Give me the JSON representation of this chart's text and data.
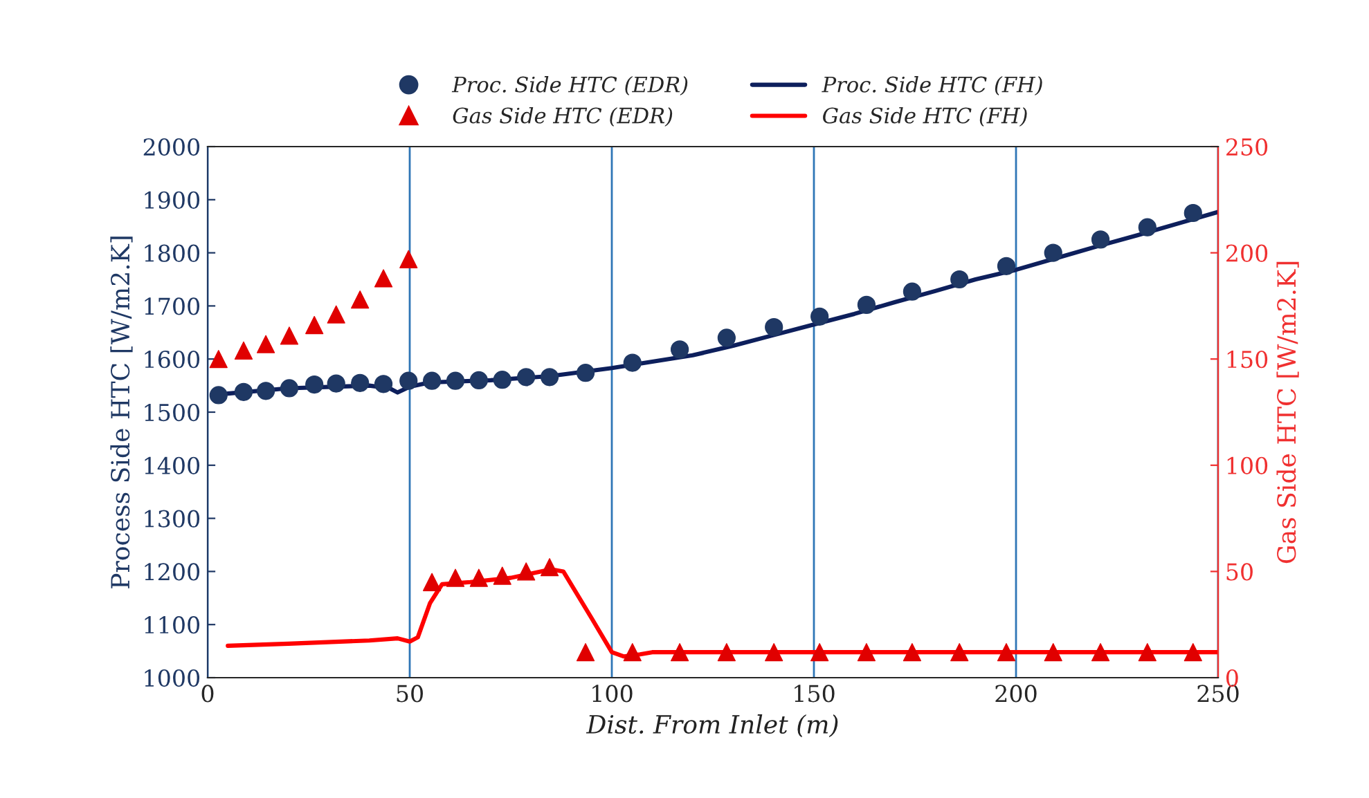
{
  "chart_data": {
    "type": "scatter",
    "xlabel": "Dist. From Inlet (m)",
    "ylabel": "Process Side HTC [W/m2.K]",
    "y2label": "Gas Side HTC [W/m2.K]",
    "xlim": [
      0,
      250
    ],
    "xticks": [
      0,
      50,
      100,
      150,
      200,
      250
    ],
    "ylim": [
      1000,
      2000
    ],
    "yticks": [
      1000,
      1100,
      1200,
      1300,
      1400,
      1500,
      1600,
      1700,
      1800,
      1900,
      2000
    ],
    "y2lim": [
      0,
      250
    ],
    "y2ticks": [
      0,
      50,
      100,
      150,
      200,
      250
    ],
    "grid": "x",
    "legend": "top",
    "series": [
      {
        "name": "Proc. Side HTC (EDR)",
        "marker": "circle",
        "color": "#1f3864",
        "x": [
          2.7,
          8.9,
          14.4,
          20.2,
          26.4,
          31.8,
          37.7,
          43.5,
          49.7,
          55.5,
          61.3,
          67.1,
          72.9,
          78.8,
          84.6,
          93.5,
          105.1,
          116.8,
          128.4,
          140.1,
          151.4,
          163,
          174.3,
          186,
          197.6,
          209.2,
          220.9,
          232.5,
          243.8
        ],
        "values": [
          1532,
          1538,
          1540,
          1545,
          1552,
          1554,
          1555,
          1553,
          1559,
          1559,
          1559,
          1560,
          1561,
          1566,
          1566,
          1574,
          1593,
          1618,
          1640,
          1660,
          1680,
          1702,
          1727,
          1750,
          1775,
          1800,
          1825,
          1848,
          1875
        ]
      },
      {
        "name": "Gas Side HTC (EDR)",
        "marker": "triangle",
        "color": "#e00000",
        "axis": "y2",
        "x": [
          2.7,
          8.9,
          14.4,
          20.2,
          26.4,
          31.8,
          37.7,
          43.5,
          49.7,
          55.5,
          61.3,
          67.1,
          72.9,
          78.8,
          84.6,
          93.5,
          105.1,
          116.8,
          128.4,
          140.1,
          151.4,
          163,
          174.3,
          186,
          197.6,
          209.2,
          220.9,
          232.5,
          243.8
        ],
        "values": [
          150,
          154,
          157,
          161,
          166,
          171,
          178,
          188,
          197,
          45,
          47,
          47,
          48,
          50,
          52,
          12,
          12,
          12,
          12,
          12,
          12,
          12,
          12,
          12,
          12,
          12,
          12,
          12,
          12
        ]
      },
      {
        "name": "Proc. Side HTC (FH)",
        "type": "line",
        "marker": "none",
        "line_style": "solid",
        "color": "#0d1f5c",
        "x": [
          5,
          20,
          40,
          45,
          47,
          50,
          55,
          70,
          85,
          100,
          110,
          120,
          130,
          140,
          150,
          160,
          170,
          180,
          190,
          200,
          210,
          220,
          230,
          240,
          250
        ],
        "values": [
          1535,
          1545,
          1550,
          1545,
          1537,
          1548,
          1556,
          1560,
          1568,
          1583,
          1595,
          1607,
          1625,
          1645,
          1665,
          1685,
          1707,
          1728,
          1750,
          1768,
          1790,
          1812,
          1833,
          1855,
          1877
        ]
      },
      {
        "name": "Gas Side HTC (FH)",
        "type": "line",
        "marker": "none",
        "line_style": "solid",
        "color": "#ff0000",
        "axis": "y2",
        "x": [
          5,
          20,
          40,
          47,
          50,
          52,
          55,
          58,
          65,
          75,
          85,
          88,
          95,
          100,
          103,
          107,
          110,
          250
        ],
        "values": [
          15,
          16,
          17.5,
          18.5,
          17,
          19,
          35,
          44,
          45,
          47,
          51,
          50,
          28,
          12,
          10,
          11,
          12,
          12
        ]
      }
    ]
  }
}
